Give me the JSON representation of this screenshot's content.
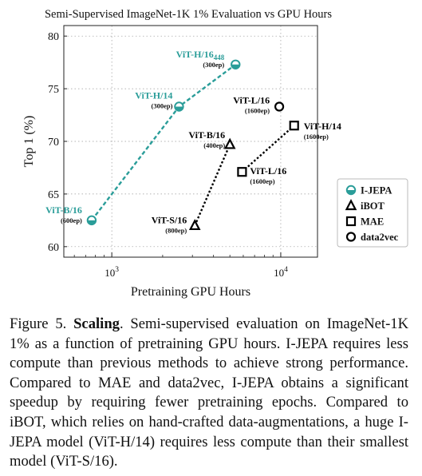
{
  "chart_data": {
    "type": "scatter",
    "title": "Semi-Supervised ImageNet-1K 1% Evaluation vs GPU Hours",
    "xlabel": "Pretraining GPU Hours",
    "ylabel": "Top 1 (%)",
    "xscale": "log",
    "xlim": [
      520,
      16500
    ],
    "ylim": [
      59,
      81
    ],
    "yticks": [
      60,
      65,
      70,
      75,
      80
    ],
    "xticks": [
      {
        "value": 1000,
        "base": "10",
        "exp": "3"
      },
      {
        "value": 10000,
        "base": "10",
        "exp": "4"
      }
    ],
    "grid": true,
    "legend_position": "right",
    "series": [
      {
        "name": "I-JEPA",
        "marker": "circle-half",
        "color": "#2a9d99",
        "line": "dashed",
        "points": [
          {
            "x": 760,
            "y": 62.5,
            "label": "ViT-B/16",
            "sub": "",
            "epochs": "(600ep)"
          },
          {
            "x": 2500,
            "y": 73.3,
            "label": "ViT-H/14",
            "sub": "",
            "epochs": "(300ep)"
          },
          {
            "x": 5400,
            "y": 77.3,
            "label": "ViT-H/16",
            "sub": "448",
            "epochs": "(300ep)"
          }
        ]
      },
      {
        "name": "iBOT",
        "marker": "triangle",
        "color": "#000000",
        "line": "dotted",
        "points": [
          {
            "x": 3100,
            "y": 62.0,
            "label": "ViT-S/16",
            "sub": "",
            "epochs": "(800ep)"
          },
          {
            "x": 5000,
            "y": 69.7,
            "label": "ViT-B/16",
            "sub": "",
            "epochs": "(400ep)"
          }
        ]
      },
      {
        "name": "MAE",
        "marker": "square",
        "color": "#000000",
        "line": "dotted",
        "points": [
          {
            "x": 5900,
            "y": 67.1,
            "label": "ViT-L/16",
            "sub": "",
            "epochs": "(1600ep)"
          },
          {
            "x": 12000,
            "y": 71.5,
            "label": "ViT-H/14",
            "sub": "",
            "epochs": "(1600ep)"
          }
        ]
      },
      {
        "name": "data2vec",
        "marker": "circle",
        "color": "#000000",
        "line": "none",
        "points": [
          {
            "x": 9800,
            "y": 73.3,
            "label": "ViT-L/16",
            "sub": "",
            "epochs": "(1600ep)"
          }
        ]
      }
    ]
  },
  "caption": {
    "label": "Figure 5.",
    "title": "Scaling",
    "text": "Semi-supervised evaluation on ImageNet-1K 1% as a function of pretraining GPU hours. I-JEPA requires less compute than previous methods to achieve strong performance. Compared to MAE and data2vec, I-JEPA obtains a significant speedup by requiring fewer pretraining epochs. Compared to iBOT, which relies on hand-crafted data-augmentations, a huge I-JEPA model (ViT-H/14) requires less compute than their smallest model (ViT-S/16)."
  }
}
